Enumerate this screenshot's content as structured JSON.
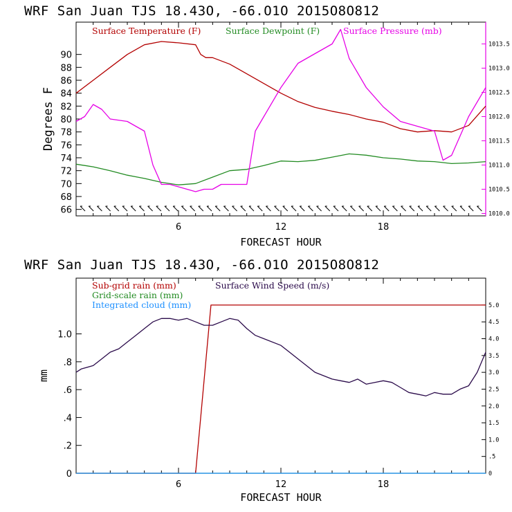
{
  "chart_data": [
    {
      "type": "line",
      "title": "WRF  San Juan TJS  18.43O, -66.O1O  2O15O8O812",
      "xlabel": "FORECAST HOUR",
      "ylabel": "Degrees F",
      "xlim": [
        0,
        24
      ],
      "x_ticks": [
        "6",
        "12",
        "18"
      ],
      "ylim": [
        65,
        95
      ],
      "y_ticks": [
        "66",
        "68",
        "70",
        "72",
        "74",
        "76",
        "78",
        "80",
        "82",
        "84",
        "86",
        "88",
        "90"
      ],
      "y2lim": [
        1009.95,
        1013.95
      ],
      "y2_ticks": [
        "1010.0",
        "1010.5",
        "1011.0",
        "1011.5",
        "1012.0",
        "1012.5",
        "1013.0",
        "1013.5"
      ],
      "legend_position": "top-left",
      "colors": {
        "temperature": "#b30000",
        "dewpoint": "#228B22",
        "pressure": "#e600e6",
        "frame_right": "#e600e6"
      },
      "series": [
        {
          "name": "Surface Temperature (F)",
          "axis": "left",
          "color": "#b30000",
          "x": [
            0,
            1,
            2,
            3,
            4,
            5,
            6,
            7,
            7.3,
            7.6,
            8,
            9,
            10,
            11,
            12,
            13,
            14,
            15,
            16,
            17,
            18,
            19,
            20,
            21,
            22,
            23,
            24
          ],
          "values": [
            84,
            86,
            88,
            90,
            91.5,
            92,
            91.8,
            91.5,
            90,
            89.5,
            89.5,
            88.5,
            87,
            85.5,
            84,
            82.7,
            81.8,
            81.2,
            80.7,
            80,
            79.5,
            78.5,
            78,
            78.2,
            78,
            79,
            82
          ]
        },
        {
          "name": "Surface Dewpoint (F)",
          "axis": "left",
          "color": "#228B22",
          "x": [
            0,
            1,
            2,
            3,
            4,
            5,
            6,
            7,
            8,
            9,
            10,
            11,
            12,
            13,
            14,
            15,
            16,
            17,
            18,
            19,
            20,
            21,
            22,
            23,
            24
          ],
          "values": [
            73,
            72.6,
            72,
            71.3,
            70.8,
            70.2,
            69.8,
            70,
            71,
            72,
            72.2,
            72.8,
            73.5,
            73.4,
            73.6,
            74.1,
            74.6,
            74.4,
            74,
            73.8,
            73.5,
            73.4,
            73.1,
            73.2,
            73.4
          ]
        },
        {
          "name": "Surface Pressure (mb)",
          "axis": "right",
          "color": "#e600e6",
          "x": [
            0,
            0.5,
            1,
            1.5,
            2,
            3,
            3.5,
            4,
            4.5,
            5,
            5.5,
            6,
            6.5,
            7,
            7.5,
            8,
            8.5,
            9,
            9.5,
            10,
            10.5,
            11,
            12,
            13,
            14,
            15,
            15.5,
            16,
            17,
            18,
            19,
            20,
            21,
            21.5,
            22,
            23,
            24
          ],
          "values": [
            1011.9,
            1012.0,
            1012.25,
            1012.15,
            1011.95,
            1011.9,
            1011.8,
            1011.7,
            1011.0,
            1010.6,
            1010.6,
            1010.55,
            1010.5,
            1010.45,
            1010.5,
            1010.5,
            1010.6,
            1010.6,
            1010.6,
            1010.6,
            1011.7,
            1012.0,
            1012.6,
            1013.1,
            1013.3,
            1013.5,
            1013.8,
            1013.2,
            1012.6,
            1012.2,
            1011.9,
            1011.8,
            1011.7,
            1011.1,
            1011.2,
            1012.0,
            1012.6
          ]
        }
      ],
      "wind_barbs_row": "calm barbs along bottom edge"
    },
    {
      "type": "line",
      "title": "WRF  San Juan TJS  18.43O, -66.O1O  2O15O8O812",
      "xlabel": "FORECAST HOUR",
      "ylabel": "mm",
      "xlim": [
        0,
        24
      ],
      "x_ticks": [
        "6",
        "12",
        "18"
      ],
      "ylim": [
        0,
        1.4
      ],
      "y_ticks": [
        "0",
        ".2",
        ".4",
        ".6",
        ".8",
        "1.0"
      ],
      "y2lim": [
        0,
        5.8
      ],
      "y2_ticks": [
        "0",
        ".5",
        "1.0",
        "1.5",
        "2.0",
        "2.5",
        "3.0",
        "3.5",
        "4.0",
        "4.5",
        "5.0"
      ],
      "legend_position": "top-left",
      "colors": {
        "subgrid": "#b30000",
        "gridscale": "#228B22",
        "cloud": "#1e90ff",
        "wind": "#2a0a4a"
      },
      "series": [
        {
          "name": "Sub-grid rain (mm)",
          "axis": "right",
          "color": "#b30000",
          "x": [
            0,
            7,
            7.9,
            8,
            24
          ],
          "values": [
            0,
            0,
            5.0,
            5.0,
            5.0
          ]
        },
        {
          "name": "Grid-scale rain (mm)",
          "axis": "left",
          "color": "#228B22",
          "x": [
            0,
            24
          ],
          "values": [
            0,
            0
          ]
        },
        {
          "name": "Integrated cloud (mm)",
          "axis": "left",
          "color": "#1e90ff",
          "x": [
            0,
            24
          ],
          "values": [
            0,
            0
          ]
        },
        {
          "name": "Surface Wind Speed (m/s)",
          "axis": "right",
          "color": "#2a0a4a",
          "x": [
            0,
            0.3,
            1,
            1.5,
            2,
            2.5,
            3,
            3.5,
            4,
            4.5,
            5,
            5.5,
            6,
            6.5,
            7,
            7.5,
            8,
            8.5,
            9,
            9.5,
            10,
            10.5,
            11,
            12,
            13,
            14,
            15,
            15.5,
            16,
            16.5,
            17,
            17.5,
            18,
            18.5,
            19,
            19.5,
            20,
            20.5,
            21,
            21.5,
            22,
            22.5,
            23,
            23.5,
            24
          ],
          "values": [
            3.0,
            3.1,
            3.2,
            3.4,
            3.6,
            3.7,
            3.9,
            4.1,
            4.3,
            4.5,
            4.6,
            4.6,
            4.55,
            4.6,
            4.5,
            4.4,
            4.4,
            4.5,
            4.6,
            4.55,
            4.3,
            4.1,
            4.0,
            3.8,
            3.4,
            3.0,
            2.8,
            2.75,
            2.7,
            2.8,
            2.65,
            2.7,
            2.75,
            2.7,
            2.55,
            2.4,
            2.35,
            2.3,
            2.4,
            2.35,
            2.35,
            2.5,
            2.6,
            3.0,
            3.6
          ]
        }
      ]
    }
  ]
}
